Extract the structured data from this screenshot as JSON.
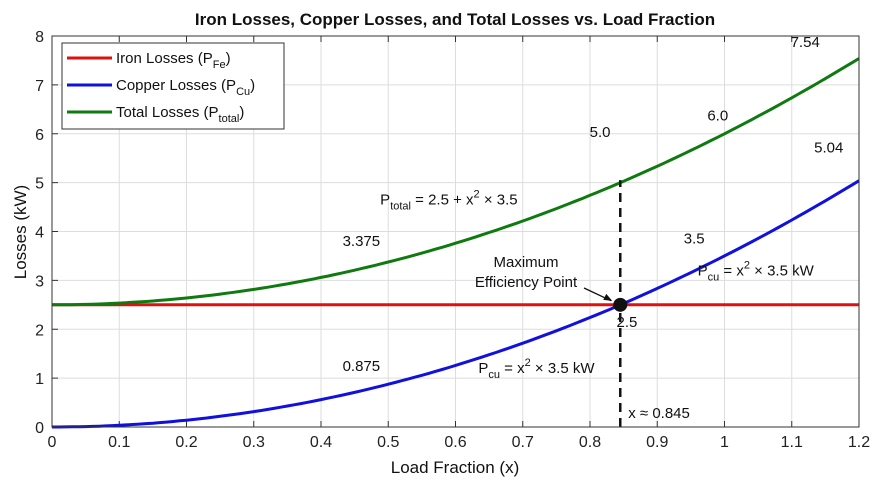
{
  "chart_data": {
    "type": "line",
    "title": "Iron Losses, Copper Losses, and Total Losses vs. Load Fraction",
    "xlabel": "Load Fraction (x)",
    "ylabel": "Losses (kW)",
    "xlim": [
      0,
      1.2
    ],
    "ylim": [
      0,
      8
    ],
    "xticks": [
      "0",
      "0.1",
      "0.2",
      "0.3",
      "0.4",
      "0.5",
      "0.6",
      "0.7",
      "0.8",
      "0.9",
      "1",
      "1.1",
      "1.2"
    ],
    "yticks": [
      "0",
      "1",
      "2",
      "3",
      "4",
      "5",
      "6",
      "7",
      "8"
    ],
    "grid": true,
    "legend_position": "top-left",
    "series": [
      {
        "name": "Iron Losses (PFe)",
        "label_main": "Iron Losses (P",
        "label_sub": "Fe",
        "color": "#e01010",
        "formula": "2.5",
        "points": [
          [
            0,
            2.5
          ],
          [
            1.2,
            2.5
          ]
        ]
      },
      {
        "name": "Copper Losses (PCu)",
        "label_main": "Copper Losses (P",
        "label_sub": "Cu",
        "color": "#1010e0",
        "formula": "3.5*x^2",
        "points": [
          [
            0,
            0
          ],
          [
            0.5,
            0.875
          ],
          [
            0.845,
            2.5
          ],
          [
            1.0,
            3.5
          ],
          [
            1.2,
            5.04
          ]
        ]
      },
      {
        "name": "Total Losses (Ptotal)",
        "label_main": "Total Losses (P",
        "label_sub": "total",
        "color": "#0f7a0f",
        "formula": "2.5+3.5*x^2",
        "points": [
          [
            0,
            2.5
          ],
          [
            0.5,
            3.375
          ],
          [
            0.845,
            5.0
          ],
          [
            1.0,
            6.0
          ],
          [
            1.2,
            7.54
          ]
        ]
      }
    ],
    "max_efficiency_point": {
      "x": 0.845,
      "y": 2.5,
      "label_line1": "Maximum",
      "label_line2": "Efficiency Point",
      "x_label": "x ≈ 0.845"
    },
    "annotations": [
      {
        "text": "7.54",
        "x": 1.12,
        "y": 7.78
      },
      {
        "text": "6.0",
        "x": 0.99,
        "y": 6.27
      },
      {
        "text": "5.0",
        "x": 0.815,
        "y": 5.93
      },
      {
        "text": "5.04",
        "x": 1.155,
        "y": 5.62
      },
      {
        "text": "3.375",
        "x": 0.46,
        "y": 3.7
      },
      {
        "text": "3.5",
        "x": 0.955,
        "y": 3.75
      },
      {
        "text": "2.5",
        "x": 0.855,
        "y": 2.05
      },
      {
        "text": "0.875",
        "x": 0.46,
        "y": 1.15
      }
    ],
    "formula_labels": [
      {
        "main": "P",
        "sub": "total",
        "rest_pre": " = 2.5 + x",
        "sup": "2",
        "rest_post": " × 3.5",
        "x": 0.488,
        "y": 4.55
      },
      {
        "main": "P",
        "sub": "cu",
        "rest_pre": " = x",
        "sup": "2",
        "rest_post": " × 3.5 kW",
        "x": 0.96,
        "y": 3.1
      },
      {
        "main": "P",
        "sub": "cu",
        "rest_pre": " = x",
        "sup": "2",
        "rest_post": " × 3.5 kW",
        "x": 0.634,
        "y": 1.1
      }
    ]
  }
}
